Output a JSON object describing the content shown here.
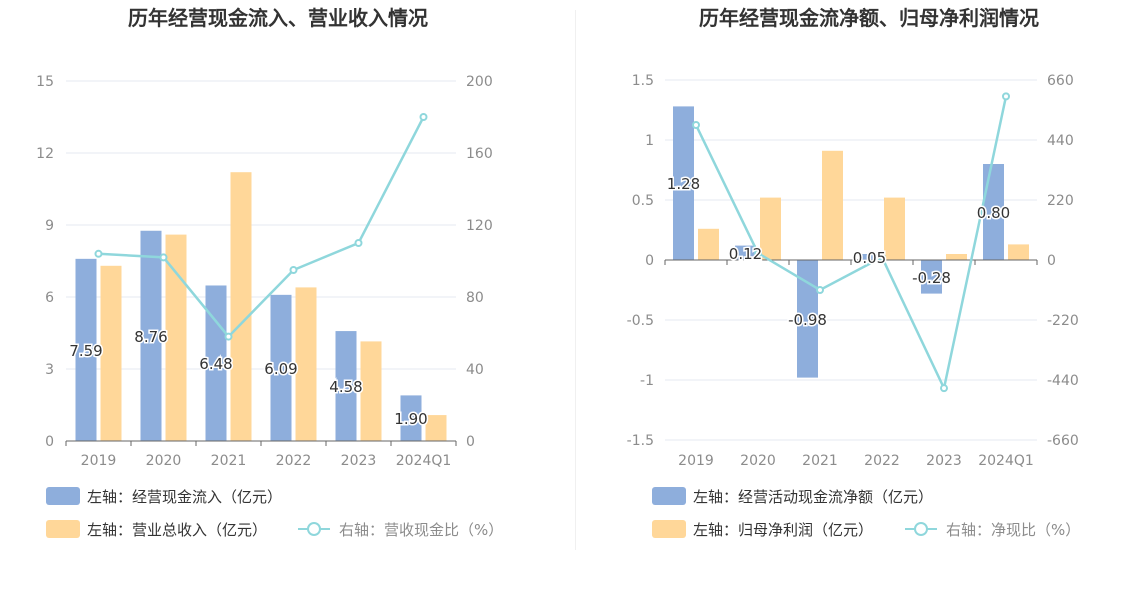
{
  "colors": {
    "blue": "#8eaedc",
    "orange": "#ffd799",
    "line": "#8fd7dc",
    "grid": "#e6e8f2",
    "axis_text": "#8c8c8c",
    "title": "#333333"
  },
  "chart_data": [
    {
      "type": "bar",
      "title": "历年经营现金流入、营业收入情况",
      "categories": [
        "2019",
        "2020",
        "2021",
        "2022",
        "2023",
        "2024Q1"
      ],
      "left_axis": {
        "ticks": [
          0,
          3,
          6,
          9,
          12,
          15
        ],
        "labels": [
          "0",
          "3",
          "6",
          "9",
          "12",
          "15"
        ]
      },
      "right_axis": {
        "ticks": [
          0,
          40,
          80,
          120,
          160,
          200
        ],
        "labels": [
          "0",
          "40",
          "80",
          "120",
          "160",
          "200"
        ]
      },
      "series": [
        {
          "name": "左轴：经营现金流入（亿元）",
          "kind": "bar",
          "axis": "left",
          "color": "#8eaedc",
          "values": [
            7.59,
            8.76,
            6.48,
            6.09,
            4.58,
            1.9
          ],
          "labels": [
            "7.59",
            "8.76",
            "6.48",
            "6.09",
            "4.58",
            "1.90"
          ]
        },
        {
          "name": "左轴：营业总收入（亿元）",
          "kind": "bar",
          "axis": "left",
          "color": "#ffd799",
          "values": [
            7.3,
            8.6,
            11.2,
            6.4,
            4.15,
            1.08
          ]
        },
        {
          "name": "右轴：营收现金比（%）",
          "kind": "line",
          "axis": "right",
          "color": "#8fd7dc",
          "values": [
            104,
            102,
            58,
            95,
            110,
            180
          ]
        }
      ]
    },
    {
      "type": "bar",
      "title": "历年经营现金流净额、归母净利润情况",
      "categories": [
        "2019",
        "2020",
        "2021",
        "2022",
        "2023",
        "2024Q1"
      ],
      "left_axis": {
        "ticks": [
          -1.5,
          -1,
          -0.5,
          0,
          0.5,
          1,
          1.5
        ],
        "labels": [
          "-1.5",
          "-1",
          "-0.5",
          "0",
          "0.5",
          "1",
          "1.5"
        ]
      },
      "right_axis": {
        "ticks": [
          -660,
          -440,
          -220,
          0,
          220,
          440,
          660
        ],
        "labels": [
          "-660",
          "-440",
          "-220",
          "0",
          "220",
          "440",
          "660"
        ]
      },
      "series": [
        {
          "name": "左轴：经营活动现金流净额（亿元）",
          "kind": "bar",
          "axis": "left",
          "color": "#8eaedc",
          "values": [
            1.28,
            0.12,
            -0.98,
            0.05,
            -0.28,
            0.8
          ],
          "labels": [
            "1.28",
            "0.12",
            "-0.98",
            "0.05",
            "-0.28",
            "0.80"
          ]
        },
        {
          "name": "左轴：归母净利润（亿元）",
          "kind": "bar",
          "axis": "left",
          "color": "#ffd799",
          "values": [
            0.26,
            0.52,
            0.91,
            0.52,
            0.05,
            0.13
          ]
        },
        {
          "name": "右轴：净现比（%）",
          "kind": "line",
          "axis": "right",
          "color": "#8fd7dc",
          "values": [
            495,
            25,
            -110,
            10,
            -470,
            600
          ]
        }
      ]
    }
  ]
}
